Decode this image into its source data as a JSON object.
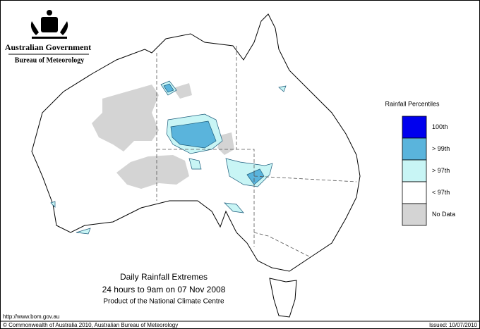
{
  "header": {
    "title": "Australian Government",
    "subtitle": "Bureau of Meteorology"
  },
  "legend": {
    "title": "Rainfall Percentiles",
    "items": [
      {
        "label": "100th",
        "color": "#0000ee"
      },
      {
        "label": "> 99th",
        "color": "#5ab4dc"
      },
      {
        "label": "> 97th",
        "color": "#c8f5f5"
      },
      {
        "label": "< 97th",
        "color": "#ffffff"
      },
      {
        "label": "No Data",
        "color": "#d4d4d4"
      }
    ]
  },
  "caption": {
    "title": "Daily Rainfall Extremes",
    "subtitle": "24 hours to 9am on 07 Nov 2008",
    "note": "Product of the National Climate Centre"
  },
  "footer": {
    "url": "http://www.bom.gov.au",
    "copyright": "© Commonwealth of Australia 2010, Australian Bureau of Meteorology",
    "issued": "Issued: 10/07/2010"
  }
}
